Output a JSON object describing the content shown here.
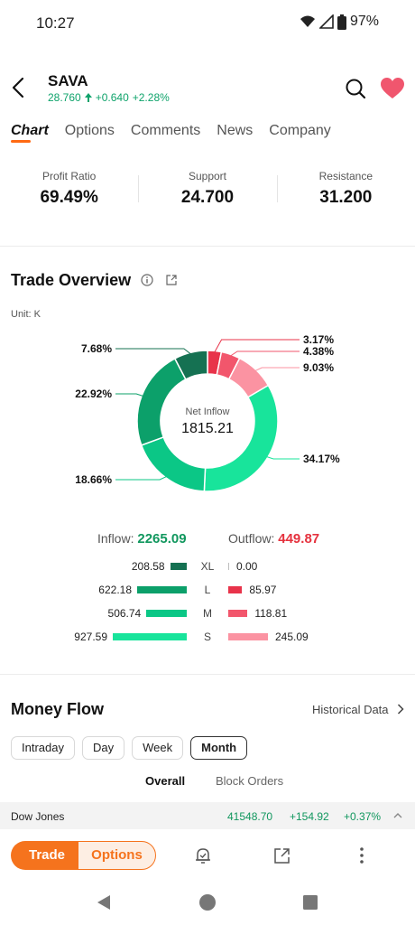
{
  "status": {
    "time": "10:27",
    "battery": "97%"
  },
  "header": {
    "ticker": "SAVA",
    "price": "28.760",
    "change": "+0.640",
    "change_pct": "+2.28%"
  },
  "tabs": [
    "Chart",
    "Options",
    "Comments",
    "News",
    "Company"
  ],
  "stats": [
    {
      "label": "Profit Ratio",
      "value": "69.49%"
    },
    {
      "label": "Support",
      "value": "24.700"
    },
    {
      "label": "Resistance",
      "value": "31.200"
    }
  ],
  "trade_overview": {
    "title": "Trade Overview",
    "unit": "Unit: K",
    "center_label": "Net Inflow",
    "center_value": "1815.21",
    "inflow_label": "Inflow:",
    "inflow_value": "2265.09",
    "outflow_label": "Outflow:",
    "outflow_value": "449.87",
    "breakdown": [
      {
        "label": "XL",
        "inflow": "208.58",
        "outflow": "0.00",
        "in_num": 208.58,
        "out_num": 0.0
      },
      {
        "label": "L",
        "inflow": "622.18",
        "outflow": "85.97",
        "in_num": 622.18,
        "out_num": 85.97
      },
      {
        "label": "M",
        "inflow": "506.74",
        "outflow": "118.81",
        "in_num": 506.74,
        "out_num": 118.81
      },
      {
        "label": "S",
        "inflow": "927.59",
        "outflow": "245.09",
        "in_num": 927.59,
        "out_num": 245.09
      }
    ],
    "colors": {
      "in_xl": "#157152",
      "in_l": "#0ca06a",
      "in_m": "#0bc786",
      "in_s": "#18e49b",
      "out_xl": "#bdbdbd",
      "out_l": "#e8334a",
      "out_m": "#f2566c",
      "out_s": "#fb93a2"
    }
  },
  "chart_data": {
    "type": "pie",
    "title": "Trade Overview",
    "center_label": "Net Inflow",
    "center_value": 1815.21,
    "slices": [
      {
        "name": "out-l",
        "value": 3.17,
        "label": "3.17%",
        "color": "#e8334a"
      },
      {
        "name": "out-m",
        "value": 4.38,
        "label": "4.38%",
        "color": "#f2566c"
      },
      {
        "name": "out-s",
        "value": 9.03,
        "label": "9.03%",
        "color": "#fb93a2"
      },
      {
        "name": "in-s",
        "value": 34.17,
        "label": "34.17%",
        "color": "#18e49b"
      },
      {
        "name": "in-m",
        "value": 18.66,
        "label": "18.66%",
        "color": "#0bc786"
      },
      {
        "name": "in-l",
        "value": 22.92,
        "label": "22.92%",
        "color": "#0ca06a"
      },
      {
        "name": "in-xl",
        "value": 7.68,
        "label": "7.68%",
        "color": "#157152"
      }
    ]
  },
  "money_flow": {
    "title": "Money Flow",
    "historical": "Historical Data",
    "periods": [
      "Intraday",
      "Day",
      "Week",
      "Month"
    ],
    "active_period": "Month",
    "segments": [
      "Overall",
      "Block Orders"
    ]
  },
  "index_ticker": {
    "name": "Dow Jones",
    "value": "41548.70",
    "change": "+154.92",
    "change_pct": "+0.37%"
  },
  "bottom_bar": {
    "trade": "Trade",
    "options": "Options"
  }
}
